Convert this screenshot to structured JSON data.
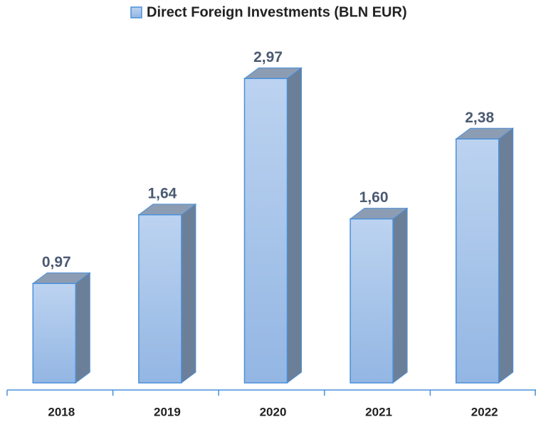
{
  "chart_data": {
    "type": "bar3d",
    "categories": [
      "2018",
      "2019",
      "2020",
      "2021",
      "2022"
    ],
    "series": [
      {
        "name": "Direct Foreign Investments  (BLN EUR)",
        "color": "#a7c4ea",
        "values": [
          0.97,
          1.64,
          2.97,
          1.6,
          2.38
        ],
        "value_labels": [
          "0,97",
          "1,64",
          "2,97",
          "1,60",
          "2,38"
        ]
      }
    ],
    "ylim": [
      0,
      3.5
    ],
    "legend": "top"
  }
}
